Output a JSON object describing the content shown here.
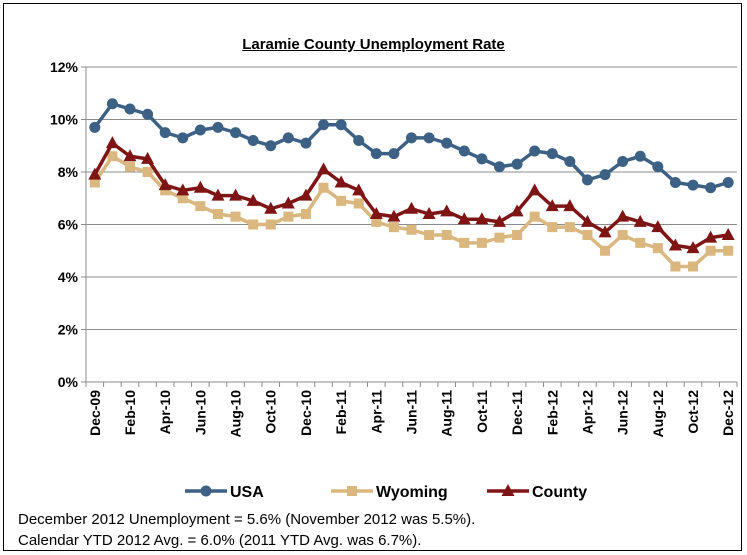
{
  "chart_data": {
    "type": "line",
    "title": "Laramie County Unemployment Rate",
    "xlabel": "",
    "ylabel": "",
    "ylim": [
      0,
      12
    ],
    "yticks": [
      "0%",
      "2%",
      "4%",
      "6%",
      "8%",
      "10%",
      "12%"
    ],
    "ytick_values": [
      0,
      2,
      4,
      6,
      8,
      10,
      12
    ],
    "grid": true,
    "legend": "bottom",
    "x": [
      "Dec-09",
      "Jan-10",
      "Feb-10",
      "Mar-10",
      "Apr-10",
      "May-10",
      "Jun-10",
      "Jul-10",
      "Aug-10",
      "Sep-10",
      "Oct-10",
      "Nov-10",
      "Dec-10",
      "Jan-11",
      "Feb-11",
      "Mar-11",
      "Apr-11",
      "May-11",
      "Jun-11",
      "Jul-11",
      "Aug-11",
      "Sep-11",
      "Oct-11",
      "Nov-11",
      "Dec-11",
      "Jan-12",
      "Feb-12",
      "Mar-12",
      "Apr-12",
      "May-12",
      "Jun-12",
      "Jul-12",
      "Aug-12",
      "Sep-12",
      "Oct-12",
      "Nov-12",
      "Dec-12"
    ],
    "xtick_labels": [
      "Dec-09",
      "Feb-10",
      "Apr-10",
      "Jun-10",
      "Aug-10",
      "Oct-10",
      "Dec-10",
      "Feb-11",
      "Apr-11",
      "Jun-11",
      "Aug-11",
      "Oct-11",
      "Dec-11",
      "Feb-12",
      "Apr-12",
      "Jun-12",
      "Aug-12",
      "Oct-12",
      "Dec-12"
    ],
    "series": [
      {
        "name": "USA",
        "color": "#3D6185",
        "marker": "circle",
        "values": [
          9.7,
          10.6,
          10.4,
          10.2,
          9.5,
          9.3,
          9.6,
          9.7,
          9.5,
          9.2,
          9.0,
          9.3,
          9.1,
          9.8,
          9.8,
          9.2,
          8.7,
          8.7,
          9.3,
          9.3,
          9.1,
          8.8,
          8.5,
          8.2,
          8.3,
          8.8,
          8.7,
          8.4,
          7.7,
          7.9,
          8.4,
          8.6,
          8.2,
          7.6,
          7.5,
          7.4,
          7.6
        ]
      },
      {
        "name": "Wyoming",
        "color": "#D9B77E",
        "marker": "square",
        "values": [
          7.6,
          8.6,
          8.2,
          8.0,
          7.3,
          7.0,
          6.7,
          6.4,
          6.3,
          6.0,
          6.0,
          6.3,
          6.4,
          7.4,
          6.9,
          6.8,
          6.1,
          5.9,
          5.8,
          5.6,
          5.6,
          5.3,
          5.3,
          5.5,
          5.6,
          6.3,
          5.9,
          5.9,
          5.6,
          5.0,
          5.6,
          5.3,
          5.1,
          4.4,
          4.4,
          5.0,
          5.0
        ]
      },
      {
        "name": "County",
        "color": "#7E1414",
        "marker": "triangle",
        "values": [
          7.9,
          9.1,
          8.6,
          8.5,
          7.5,
          7.3,
          7.4,
          7.1,
          7.1,
          6.9,
          6.6,
          6.8,
          7.1,
          8.1,
          7.6,
          7.3,
          6.4,
          6.3,
          6.6,
          6.4,
          6.5,
          6.2,
          6.2,
          6.1,
          6.5,
          7.3,
          6.7,
          6.7,
          6.1,
          5.7,
          6.3,
          6.1,
          5.9,
          5.2,
          5.1,
          5.5,
          5.6
        ]
      }
    ]
  },
  "notes": {
    "line1": "December 2012 Unemployment = 5.6% (November 2012 was 5.5%).",
    "line2": "Calendar YTD 2012 Avg. = 6.0% (2011 YTD Avg. was 6.7%)."
  }
}
